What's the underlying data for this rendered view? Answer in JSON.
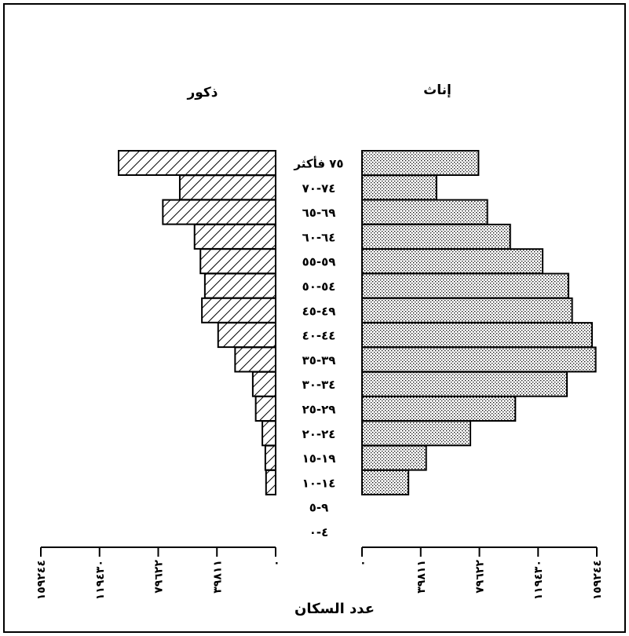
{
  "chart_data": {
    "type": "bar",
    "subtype": "population-pyramid",
    "direction": "rtl",
    "left_panel_label": "ذكور",
    "right_panel_label": "إناث",
    "xlabel": "عدد السكان",
    "categories": [
      "٧٥ فأكثر",
      "٧٤-٧٠",
      "٦٩-٦٥",
      "٦٤-٦٠",
      "٥٩-٥٥",
      "٥٤-٥٠",
      "٤٩-٤٥",
      "٤٤-٤٠",
      "٣٩-٣٥",
      "٣٤-٣٠",
      "٢٩-٢٥",
      "٢٤-٢٠",
      "١٩-١٥",
      "١٤-١٠",
      "٩-٥",
      "٤-٠"
    ],
    "series": [
      {
        "name": "ذكور",
        "values": [
          106500,
          65000,
          76500,
          55000,
          51000,
          48000,
          50000,
          39000,
          27500,
          15500,
          13500,
          9000,
          7000,
          6500,
          0,
          0
        ]
      },
      {
        "name": "إناث",
        "values": [
          79000,
          50500,
          85000,
          100500,
          122500,
          140000,
          142500,
          156000,
          158500,
          139000,
          104000,
          73500,
          43500,
          31500,
          0,
          0
        ]
      }
    ],
    "ticks": [
      0,
      39811,
      79622,
      119430,
      159244
    ],
    "tick_labels": [
      "٠",
      "٣٩٨١١",
      "٧٩٦٢٢",
      "١١٩٤٣٠",
      "١٥٩٢٤٤"
    ],
    "xlim": [
      0,
      159244
    ],
    "pattern_male": "diagonal-hatch",
    "pattern_female": "dotted-fill",
    "grid": false
  }
}
